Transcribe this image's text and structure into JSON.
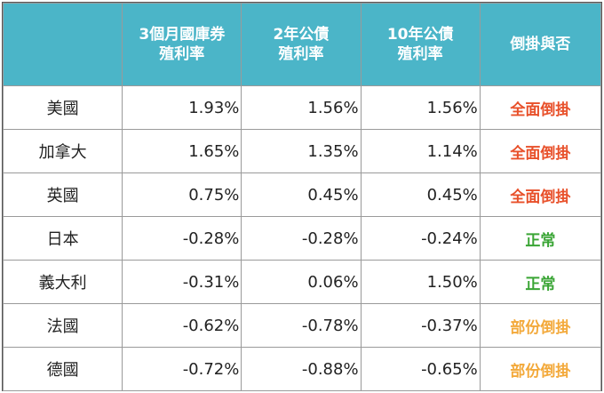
{
  "header": {
    "col0": "",
    "col1_line1": "3個月國庫券",
    "col1_line2": "殖利率",
    "col2_line1": "2年公債",
    "col2_line2": "殖利率",
    "col3_line1": "10年公債",
    "col3_line2": "殖利率",
    "col4": "倒掛與否"
  },
  "colors": {
    "header_bg": "#4bb5c8",
    "full_inversion": "#e8502a",
    "normal": "#3aa535",
    "partial_inversion": "#f3a93a"
  },
  "rows": [
    {
      "country": "美國",
      "m3": "1.93%",
      "y2": "1.56%",
      "y10": "1.56%",
      "status": "全面倒掛",
      "status_color": "#e8502a"
    },
    {
      "country": "加拿大",
      "m3": "1.65%",
      "y2": "1.35%",
      "y10": "1.14%",
      "status": "全面倒掛",
      "status_color": "#e8502a"
    },
    {
      "country": "英國",
      "m3": "0.75%",
      "y2": "0.45%",
      "y10": "0.45%",
      "status": "全面倒掛",
      "status_color": "#e8502a"
    },
    {
      "country": "日本",
      "m3": "-0.28%",
      "y2": "-0.28%",
      "y10": "-0.24%",
      "status": "正常",
      "status_color": "#3aa535"
    },
    {
      "country": "義大利",
      "m3": "-0.31%",
      "y2": "0.06%",
      "y10": "1.50%",
      "status": "正常",
      "status_color": "#3aa535"
    },
    {
      "country": "法國",
      "m3": "-0.62%",
      "y2": "-0.78%",
      "y10": "-0.37%",
      "status": "部份倒掛",
      "status_color": "#f3a93a"
    },
    {
      "country": "德國",
      "m3": "-0.72%",
      "y2": "-0.88%",
      "y10": "-0.65%",
      "status": "部份倒掛",
      "status_color": "#f3a93a"
    }
  ]
}
